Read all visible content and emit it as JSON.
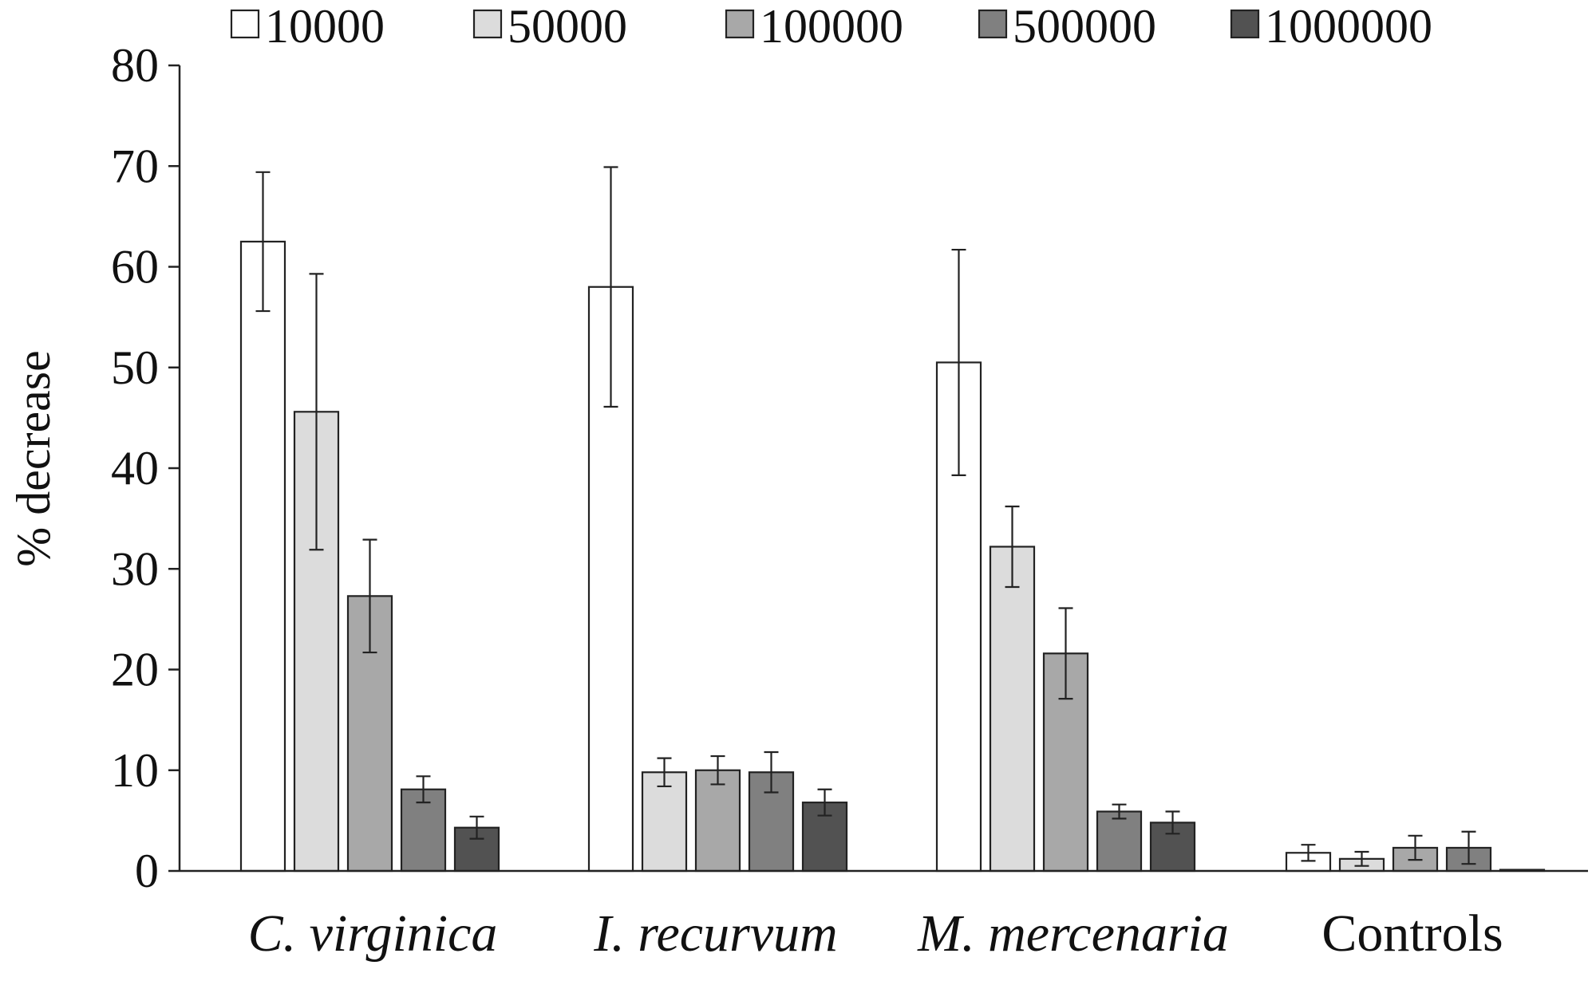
{
  "chart_data": {
    "type": "bar",
    "title": "",
    "xlabel": "",
    "ylabel": "% decrease",
    "ylim": [
      0,
      80
    ],
    "yticks": [
      0,
      10,
      20,
      30,
      40,
      50,
      60,
      70,
      80
    ],
    "grid": false,
    "legend_position": "top",
    "categories": [
      "C. virginica",
      "I. recurvum",
      "M. mercenaria",
      "Controls"
    ],
    "category_italic": [
      true,
      true,
      true,
      false
    ],
    "series": [
      {
        "name": "10000",
        "color": "#ffffff",
        "values": [
          62.5,
          58.0,
          50.5,
          1.8
        ],
        "errors": [
          6.9,
          11.9,
          11.2,
          0.8
        ]
      },
      {
        "name": "50000",
        "color": "#dcdcdc",
        "values": [
          45.6,
          9.8,
          32.2,
          1.2
        ],
        "errors": [
          13.7,
          1.4,
          4.0,
          0.7
        ]
      },
      {
        "name": "100000",
        "color": "#a8a8a8",
        "values": [
          27.3,
          10.0,
          21.6,
          2.3
        ],
        "errors": [
          5.6,
          1.4,
          4.5,
          1.2
        ]
      },
      {
        "name": "500000",
        "color": "#808080",
        "values": [
          8.1,
          9.8,
          5.9,
          2.3
        ],
        "errors": [
          1.3,
          2.0,
          0.7,
          1.6
        ]
      },
      {
        "name": "1000000",
        "color": "#525252",
        "values": [
          4.3,
          6.8,
          4.8,
          0.1
        ],
        "errors": [
          1.1,
          1.3,
          1.1,
          0.0
        ]
      }
    ]
  }
}
